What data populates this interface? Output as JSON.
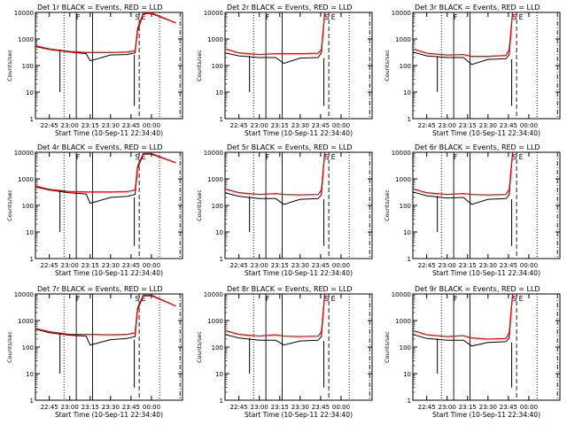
{
  "chart_data": {
    "type": "line",
    "y_scale": "log",
    "ylim": [
      1,
      10000
    ],
    "x_ticks": [
      "22:45",
      "23:00",
      "23:15",
      "23:30",
      "23:45",
      "00:00"
    ],
    "y_ticks": [
      "1",
      "10",
      "100",
      "1000",
      "10000"
    ],
    "ylabel": "Counts/sec",
    "xlabel": "Start Time (10-Sep-11 22:34:40)",
    "colors": {
      "events": "#000000",
      "lld": "#ff0000"
    },
    "markers": {
      "f": "F",
      "s": "S",
      "e": "E"
    },
    "panels": [
      {
        "title": "Det 1r BLACK = Events, RED = LLD",
        "time": [
          22.58,
          22.75,
          23.0,
          23.2,
          23.25,
          23.5,
          23.7,
          23.8,
          23.83,
          23.9,
          24.0,
          24.3
        ],
        "events": [
          520,
          400,
          320,
          280,
          150,
          250,
          260,
          300,
          2000,
          9000,
          9000,
          4000
        ],
        "lld": [
          560,
          420,
          340,
          310,
          310,
          310,
          320,
          360,
          2500,
          9500,
          9500,
          4000
        ]
      },
      {
        "title": "Det 2r BLACK = Events, RED = LLD",
        "time": [
          22.58,
          22.75,
          23.0,
          23.2,
          23.3,
          23.5,
          23.72,
          23.76,
          23.8
        ],
        "events": [
          300,
          230,
          200,
          200,
          120,
          190,
          200,
          300,
          9500
        ],
        "lld": [
          420,
          300,
          260,
          280,
          280,
          280,
          290,
          400,
          9500
        ]
      },
      {
        "title": "Det 3r BLACK = Events, RED = LLD",
        "time": [
          22.58,
          22.75,
          23.0,
          23.2,
          23.3,
          23.5,
          23.72,
          23.76,
          23.8
        ],
        "events": [
          320,
          230,
          200,
          200,
          110,
          170,
          180,
          250,
          9500
        ],
        "lld": [
          420,
          290,
          250,
          260,
          220,
          220,
          240,
          400,
          9500
        ]
      },
      {
        "title": "Det 4r BLACK = Events, RED = LLD",
        "time": [
          22.58,
          22.75,
          23.0,
          23.2,
          23.25,
          23.5,
          23.7,
          23.8,
          23.83,
          23.9,
          24.0,
          24.3
        ],
        "events": [
          500,
          380,
          300,
          270,
          120,
          200,
          220,
          260,
          2500,
          8500,
          8500,
          4000
        ],
        "lld": [
          540,
          400,
          330,
          320,
          320,
          320,
          330,
          380,
          3000,
          9000,
          9000,
          4000
        ]
      },
      {
        "title": "Det 5r BLACK = Events, RED = LLD",
        "time": [
          22.58,
          22.75,
          23.0,
          23.2,
          23.3,
          23.5,
          23.72,
          23.76,
          23.8
        ],
        "events": [
          300,
          220,
          180,
          180,
          110,
          170,
          180,
          250,
          9500
        ],
        "lld": [
          420,
          300,
          260,
          280,
          260,
          250,
          260,
          380,
          9500
        ]
      },
      {
        "title": "Det 6r BLACK = Events, RED = LLD",
        "time": [
          22.58,
          22.75,
          23.0,
          23.2,
          23.3,
          23.5,
          23.72,
          23.76,
          23.8
        ],
        "events": [
          320,
          230,
          190,
          200,
          110,
          170,
          180,
          250,
          9500
        ],
        "lld": [
          420,
          300,
          260,
          280,
          260,
          250,
          260,
          400,
          9500
        ]
      },
      {
        "title": "Det 7r BLACK = Events, RED = LLD",
        "time": [
          22.58,
          22.75,
          23.0,
          23.2,
          23.25,
          23.5,
          23.7,
          23.8,
          23.83,
          23.9,
          24.0,
          24.3
        ],
        "events": [
          480,
          350,
          280,
          260,
          120,
          190,
          210,
          250,
          2500,
          8500,
          8500,
          3500
        ],
        "lld": [
          500,
          380,
          300,
          300,
          300,
          290,
          300,
          350,
          3000,
          9000,
          9000,
          3500
        ]
      },
      {
        "title": "Det 8r BLACK = Events, RED = LLD",
        "time": [
          22.58,
          22.75,
          23.0,
          23.2,
          23.3,
          23.5,
          23.72,
          23.76,
          23.8
        ],
        "events": [
          300,
          220,
          180,
          180,
          120,
          170,
          180,
          250,
          9500
        ],
        "lld": [
          420,
          300,
          260,
          290,
          260,
          250,
          260,
          380,
          9500
        ]
      },
      {
        "title": "Det 9r BLACK = Events, RED = LLD",
        "time": [
          22.58,
          22.75,
          23.0,
          23.2,
          23.3,
          23.5,
          23.72,
          23.76,
          23.8
        ],
        "events": [
          300,
          210,
          180,
          180,
          110,
          150,
          160,
          220,
          9500
        ],
        "lld": [
          420,
          290,
          250,
          270,
          220,
          200,
          210,
          350,
          9500
        ]
      }
    ]
  }
}
